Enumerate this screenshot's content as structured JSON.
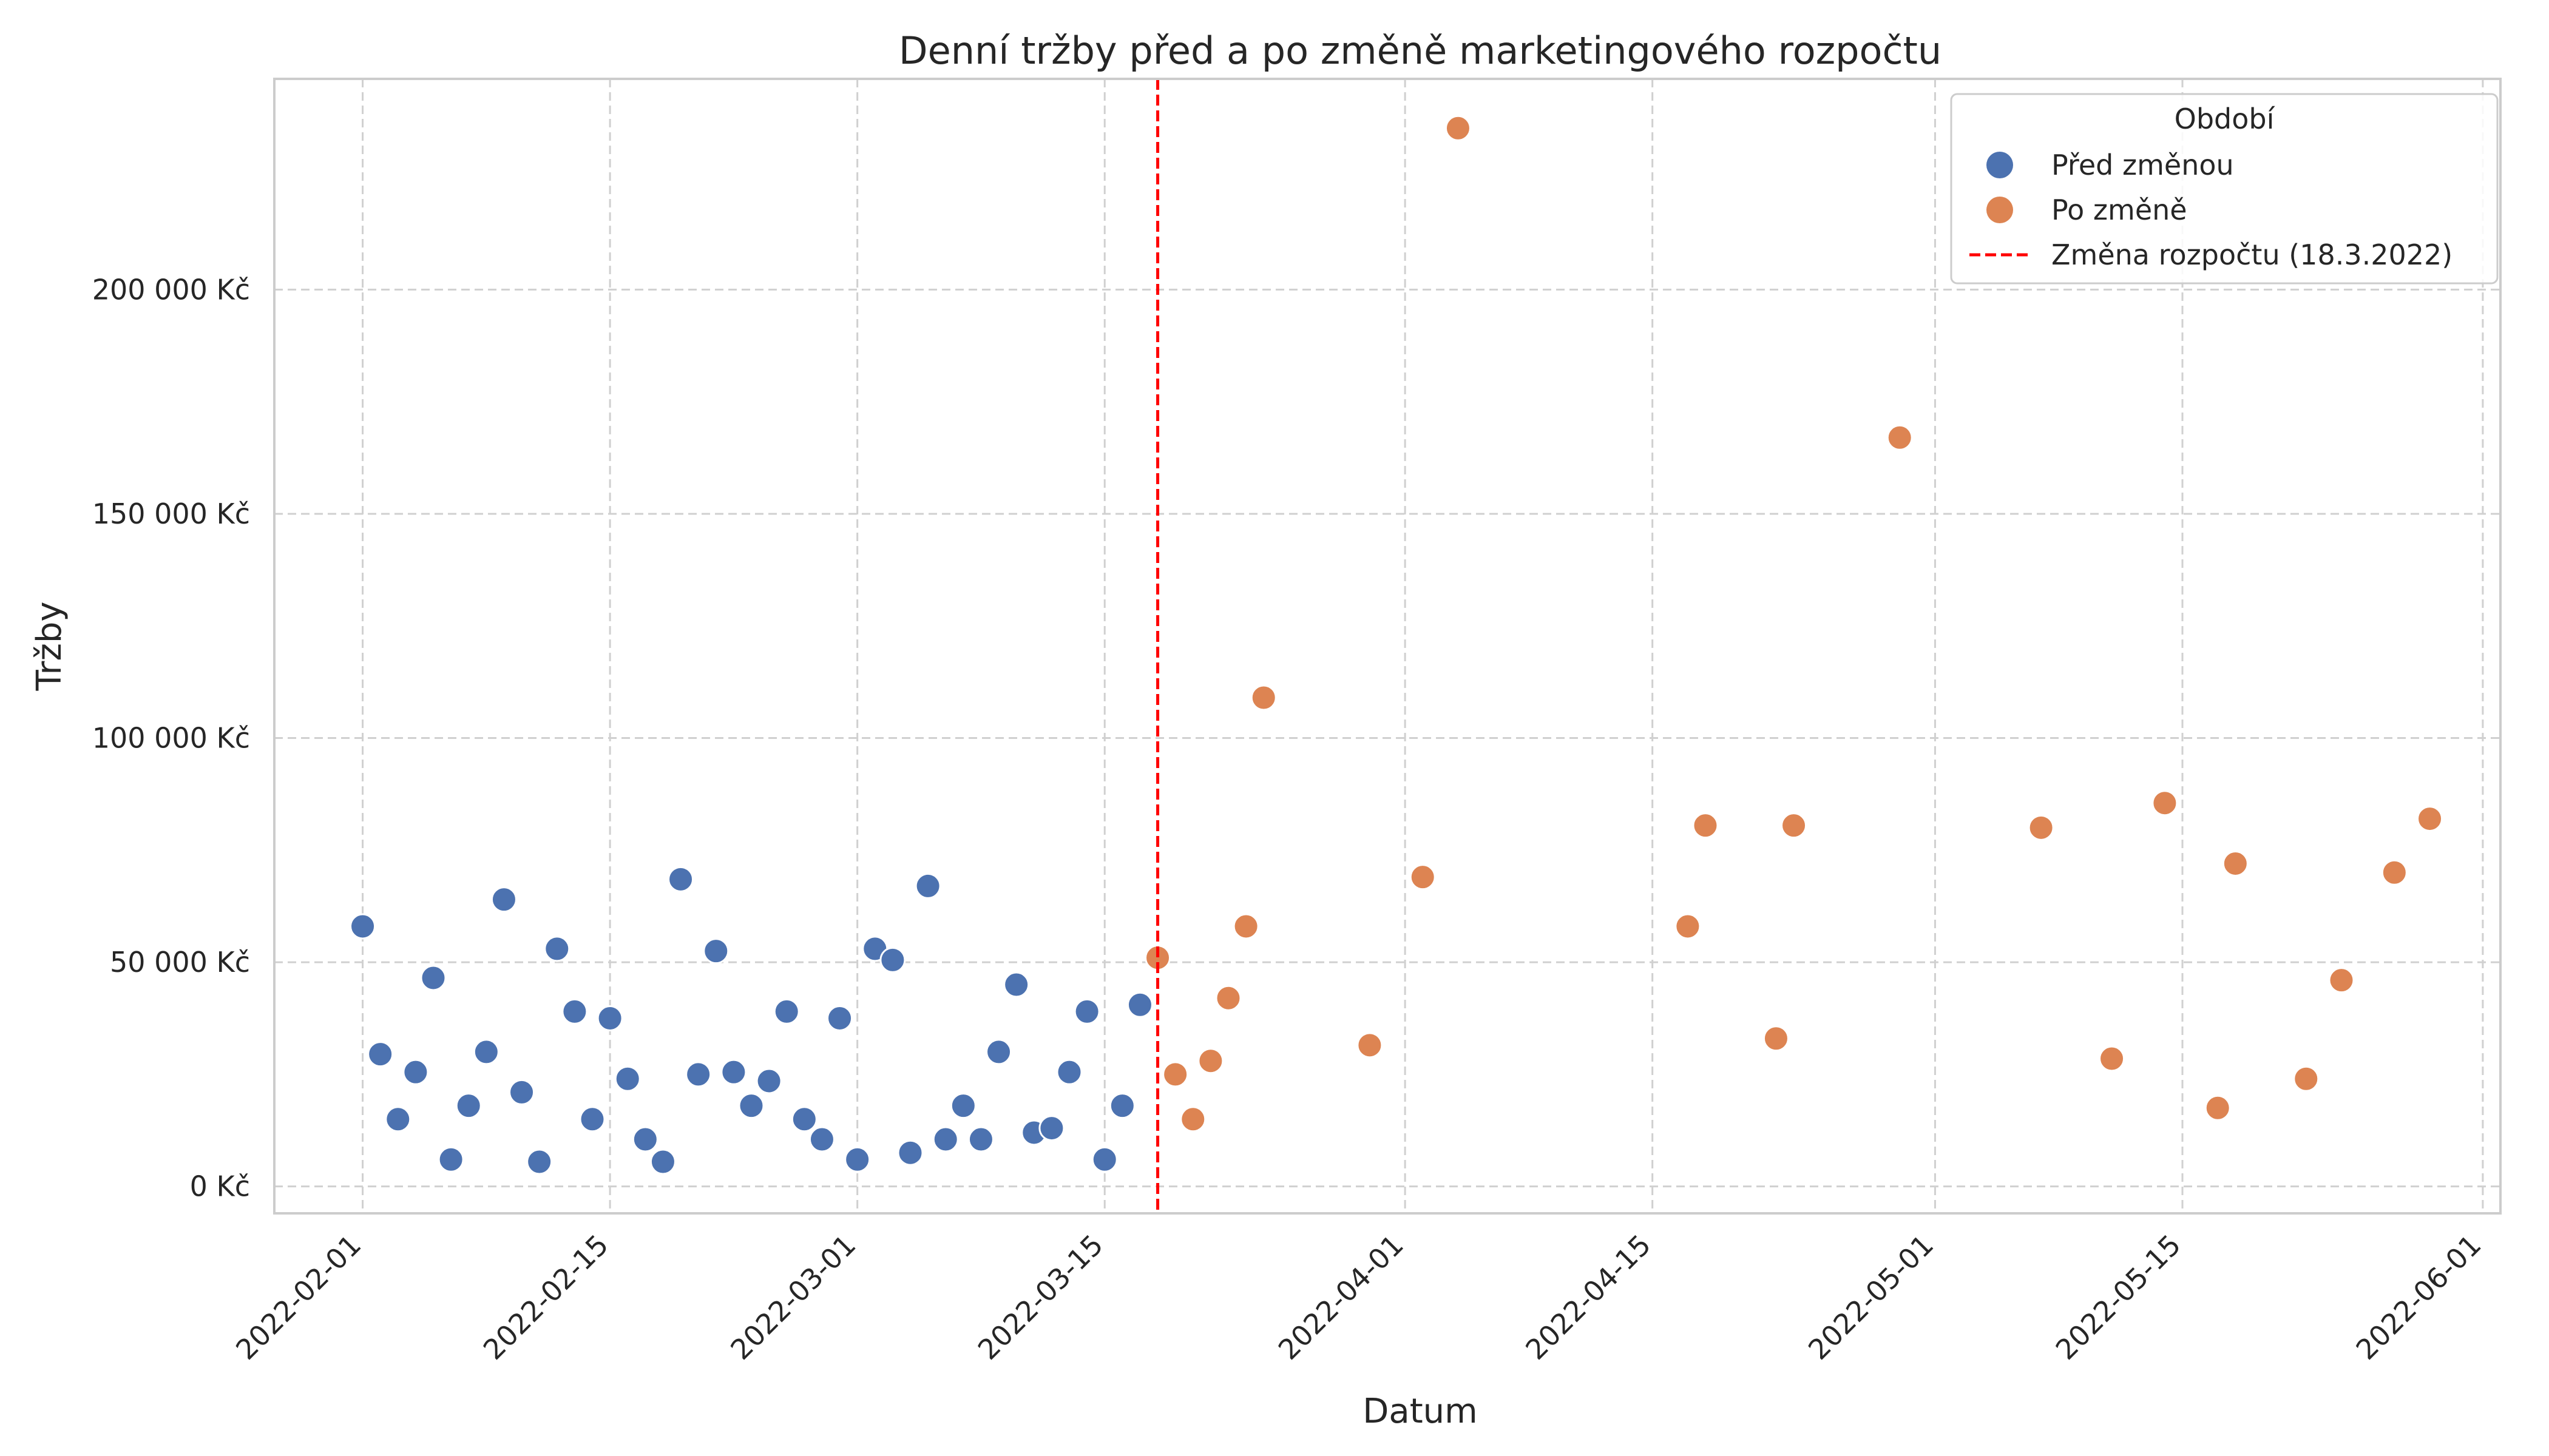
{
  "colors": {
    "before": "#4c72b0",
    "after": "#dd8452",
    "change_line": "#ff0000",
    "grid": "#d0d0d0",
    "frame": "#cccccc",
    "text": "#262626"
  },
  "chart_data": {
    "type": "scatter",
    "title": "Denní tržby před a po změně marketingového rozpočtu",
    "xlabel": "Datum",
    "ylabel": "Tržby",
    "x_scale": "date",
    "xlim": [
      "2022-01-27",
      "2022-06-02"
    ],
    "ylim": [
      -6000,
      247000
    ],
    "x_ticks": [
      "2022-02-01",
      "2022-02-15",
      "2022-03-01",
      "2022-03-15",
      "2022-04-01",
      "2022-04-15",
      "2022-05-01",
      "2022-05-15",
      "2022-06-01"
    ],
    "y_ticks": [
      0,
      50000,
      100000,
      150000,
      200000
    ],
    "y_tick_labels": [
      "0 Kč",
      "50 000 Kč",
      "100 000 Kč",
      "150 000 Kč",
      "200 000 Kč"
    ],
    "grid": true,
    "grid_style": "dashed",
    "legend": {
      "title": "Období",
      "position": "top-right",
      "entries": [
        "Před změnou",
        "Po změně",
        "Změna rozpočtu (18.3.2022)"
      ]
    },
    "change_line": {
      "x": "2022-03-18",
      "label": "Změna rozpočtu (18.3.2022)",
      "style": "dashed"
    },
    "series": [
      {
        "name": "Před změnou",
        "color": "#4c72b0",
        "points": [
          [
            "2022-02-01",
            58000
          ],
          [
            "2022-02-02",
            29500
          ],
          [
            "2022-02-03",
            15000
          ],
          [
            "2022-02-04",
            25500
          ],
          [
            "2022-02-05",
            46500
          ],
          [
            "2022-02-06",
            6000
          ],
          [
            "2022-02-07",
            18000
          ],
          [
            "2022-02-08",
            30000
          ],
          [
            "2022-02-09",
            64000
          ],
          [
            "2022-02-10",
            21000
          ],
          [
            "2022-02-11",
            5500
          ],
          [
            "2022-02-12",
            53000
          ],
          [
            "2022-02-13",
            39000
          ],
          [
            "2022-02-14",
            15000
          ],
          [
            "2022-02-15",
            37500
          ],
          [
            "2022-02-16",
            24000
          ],
          [
            "2022-02-17",
            10500
          ],
          [
            "2022-02-18",
            5500
          ],
          [
            "2022-02-19",
            68500
          ],
          [
            "2022-02-20",
            25000
          ],
          [
            "2022-02-21",
            52500
          ],
          [
            "2022-02-22",
            25500
          ],
          [
            "2022-02-23",
            18000
          ],
          [
            "2022-02-24",
            23500
          ],
          [
            "2022-02-25",
            39000
          ],
          [
            "2022-02-26",
            15000
          ],
          [
            "2022-02-27",
            10500
          ],
          [
            "2022-02-28",
            37500
          ],
          [
            "2022-03-01",
            6000
          ],
          [
            "2022-03-02",
            53000
          ],
          [
            "2022-03-03",
            50500
          ],
          [
            "2022-03-04",
            7500
          ],
          [
            "2022-03-05",
            67000
          ],
          [
            "2022-03-06",
            10500
          ],
          [
            "2022-03-07",
            18000
          ],
          [
            "2022-03-08",
            10500
          ],
          [
            "2022-03-09",
            30000
          ],
          [
            "2022-03-10",
            45000
          ],
          [
            "2022-03-11",
            12000
          ],
          [
            "2022-03-12",
            13000
          ],
          [
            "2022-03-13",
            25500
          ],
          [
            "2022-03-14",
            39000
          ],
          [
            "2022-03-15",
            6000
          ],
          [
            "2022-03-16",
            18000
          ],
          [
            "2022-03-17",
            40500
          ]
        ]
      },
      {
        "name": "Po změně",
        "color": "#dd8452",
        "points": [
          [
            "2022-03-18",
            51000
          ],
          [
            "2022-03-19",
            25000
          ],
          [
            "2022-03-20",
            15000
          ],
          [
            "2022-03-21",
            28000
          ],
          [
            "2022-03-22",
            42000
          ],
          [
            "2022-03-23",
            58000
          ],
          [
            "2022-03-24",
            109000
          ],
          [
            "2022-03-30",
            31500
          ],
          [
            "2022-04-02",
            69000
          ],
          [
            "2022-04-04",
            236000
          ],
          [
            "2022-04-17",
            58000
          ],
          [
            "2022-04-18",
            80500
          ],
          [
            "2022-04-22",
            33000
          ],
          [
            "2022-04-23",
            80500
          ],
          [
            "2022-04-29",
            167000
          ],
          [
            "2022-05-07",
            80000
          ],
          [
            "2022-05-11",
            28500
          ],
          [
            "2022-05-14",
            85500
          ],
          [
            "2022-05-17",
            17500
          ],
          [
            "2022-05-18",
            72000
          ],
          [
            "2022-05-22",
            24000
          ],
          [
            "2022-05-24",
            46000
          ],
          [
            "2022-05-27",
            70000
          ],
          [
            "2022-05-29",
            82000
          ]
        ]
      }
    ]
  }
}
